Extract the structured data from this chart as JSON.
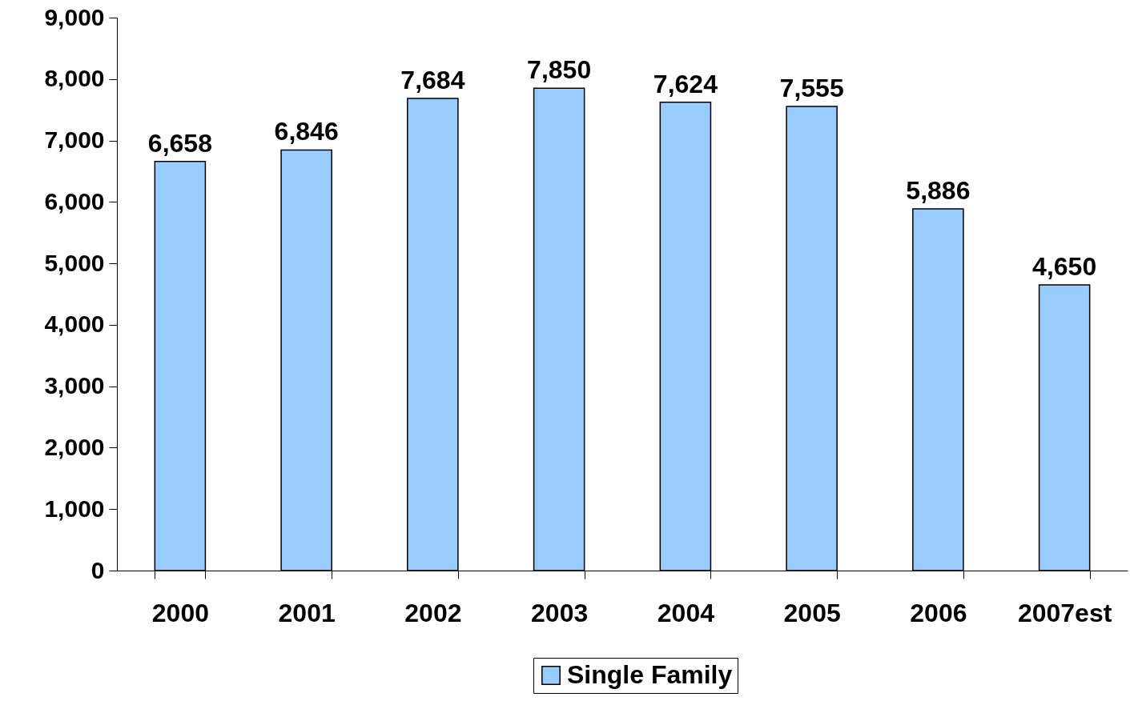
{
  "chart_data": {
    "type": "bar",
    "categories": [
      "2000",
      "2001",
      "2002",
      "2003",
      "2004",
      "2005",
      "2006",
      "2007est"
    ],
    "series": [
      {
        "name": "Single Family",
        "color": "#99ccff",
        "values": [
          6658,
          6846,
          7684,
          7850,
          7624,
          7555,
          5886,
          4650
        ],
        "value_labels": [
          "6,658",
          "6,846",
          "7,684",
          "7,850",
          "7,624",
          "7,555",
          "5,886",
          "4,650"
        ]
      }
    ],
    "ylim": [
      0,
      9000
    ],
    "yticks": [
      0,
      {
        "value": 1000,
        "label": "1,000"
      },
      {
        "value": 2000,
        "label": "2,000"
      },
      {
        "value": 3000,
        "label": "3,000"
      },
      {
        "value": 4000,
        "label": "4,000"
      },
      {
        "value": 5000,
        "label": "5,000"
      },
      {
        "value": 6000,
        "label": "6,000"
      },
      {
        "value": 7000,
        "label": "7,000"
      },
      {
        "value": 8000,
        "label": "8,000"
      },
      {
        "value": 9000,
        "label": "9,000"
      }
    ],
    "legend": "bottom"
  }
}
